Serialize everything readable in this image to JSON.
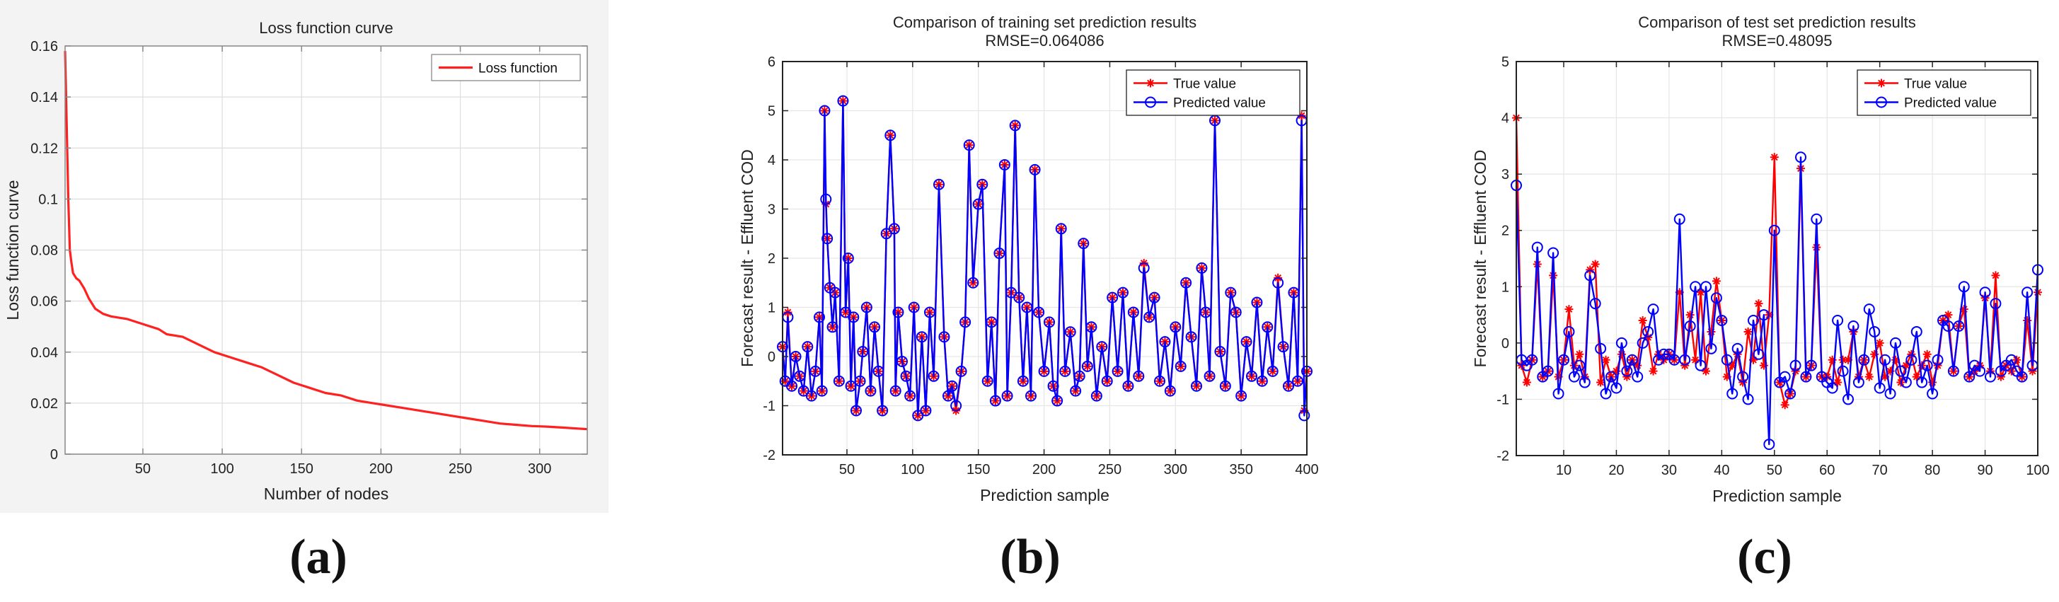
{
  "chart_data": [
    {
      "type": "line",
      "panel_label": "(a)",
      "title": "Loss function curve",
      "xlabel": "Number of nodes",
      "ylabel": "Loss function curve",
      "xlim": [
        1,
        330
      ],
      "ylim": [
        0,
        0.16
      ],
      "xticks": [
        "50",
        "100",
        "150",
        "200",
        "250",
        "300"
      ],
      "yticks": [
        "0",
        "0.02",
        "0.04",
        "0.06",
        "0.08",
        "0.1",
        "0.12",
        "0.14",
        "0.16"
      ],
      "grid": true,
      "legend_position": "top-right",
      "series": [
        {
          "name": "Loss function",
          "color": "#ff2020",
          "x": [
            1,
            2,
            3,
            4,
            5,
            6,
            8,
            10,
            13,
            16,
            20,
            25,
            30,
            40,
            50,
            60,
            65,
            75,
            85,
            95,
            105,
            115,
            125,
            135,
            145,
            155,
            165,
            175,
            185,
            195,
            205,
            215,
            225,
            235,
            245,
            255,
            265,
            275,
            285,
            295,
            305,
            315,
            330
          ],
          "y": [
            0.158,
            0.13,
            0.1,
            0.08,
            0.075,
            0.071,
            0.069,
            0.068,
            0.065,
            0.061,
            0.057,
            0.055,
            0.054,
            0.053,
            0.051,
            0.049,
            0.047,
            0.046,
            0.043,
            0.04,
            0.038,
            0.036,
            0.034,
            0.031,
            0.028,
            0.026,
            0.024,
            0.023,
            0.021,
            0.02,
            0.019,
            0.018,
            0.017,
            0.016,
            0.015,
            0.014,
            0.013,
            0.012,
            0.0115,
            0.011,
            0.0108,
            0.0104,
            0.0098
          ]
        }
      ]
    },
    {
      "type": "line",
      "panel_label": "(b)",
      "title": "Comparison of training set prediction results",
      "subtitle": "RMSE=0.064086",
      "xlabel": "Prediction sample",
      "ylabel": "Forecast result - Effluent COD",
      "xlim": [
        1,
        400
      ],
      "ylim": [
        -2,
        6
      ],
      "xticks": [
        "50",
        "100",
        "150",
        "200",
        "250",
        "300",
        "350",
        "400"
      ],
      "yticks": [
        "-2",
        "-1",
        "0",
        "1",
        "2",
        "3",
        "4",
        "5",
        "6"
      ],
      "grid": true,
      "legend_position": "top-right",
      "series": [
        {
          "name": "True value",
          "color": "#ff0000",
          "marker": "star",
          "x": [
            1,
            3,
            5,
            8,
            11,
            14,
            17,
            20,
            23,
            26,
            29,
            31,
            33,
            34,
            35,
            37,
            39,
            41,
            44,
            47,
            49,
            51,
            53,
            55,
            57,
            60,
            62,
            65,
            68,
            71,
            74,
            77,
            80,
            83,
            86,
            87,
            89,
            92,
            95,
            98,
            101,
            104,
            107,
            110,
            113,
            116,
            120,
            124,
            127,
            130,
            133,
            137,
            140,
            143,
            146,
            150,
            153,
            157,
            160,
            163,
            166,
            170,
            172,
            175,
            178,
            181,
            184,
            187,
            190,
            193,
            196,
            200,
            204,
            207,
            210,
            213,
            216,
            220,
            224,
            227,
            230,
            233,
            236,
            240,
            244,
            248,
            252,
            256,
            260,
            264,
            268,
            272,
            276,
            280,
            284,
            288,
            292,
            296,
            300,
            304,
            308,
            312,
            316,
            320,
            323,
            326,
            330,
            334,
            338,
            342,
            346,
            350,
            354,
            358,
            362,
            366,
            370,
            374,
            378,
            382,
            386,
            390,
            393,
            396,
            398,
            400
          ],
          "y": [
            0.2,
            -0.5,
            0.9,
            -0.6,
            0,
            -0.4,
            -0.7,
            0.2,
            -0.8,
            -0.3,
            0.8,
            -0.7,
            5.0,
            3.1,
            2.4,
            1.4,
            0.6,
            1.3,
            -0.5,
            5.2,
            0.9,
            2.0,
            -0.6,
            0.8,
            -1.1,
            -0.5,
            0.1,
            1.0,
            -0.7,
            0.6,
            -0.3,
            -1.1,
            2.5,
            4.5,
            2.6,
            -0.7,
            0.9,
            -0.1,
            -0.4,
            -0.8,
            1.0,
            -1.2,
            0.4,
            -1.1,
            0.9,
            -0.4,
            3.5,
            0.4,
            -0.8,
            -0.6,
            -1.1,
            -0.3,
            0.7,
            4.3,
            1.5,
            3.1,
            3.5,
            -0.5,
            0.7,
            -0.9,
            2.1,
            3.9,
            -0.8,
            1.3,
            4.7,
            1.2,
            -0.5,
            1.0,
            -0.8,
            3.8,
            0.9,
            -0.3,
            0.7,
            -0.6,
            -0.9,
            2.6,
            -0.3,
            0.5,
            -0.7,
            -0.4,
            2.3,
            -0.2,
            0.6,
            -0.8,
            0.2,
            -0.5,
            1.2,
            -0.3,
            1.3,
            -0.6,
            0.9,
            -0.4,
            1.9,
            0.8,
            1.2,
            -0.5,
            0.3,
            -0.7,
            0.6,
            -0.2,
            1.5,
            0.4,
            -0.6,
            1.8,
            0.9,
            -0.4,
            4.8,
            0.1,
            -0.6,
            1.3,
            0.9,
            -0.8,
            0.3,
            -0.4,
            1.1,
            -0.5,
            0.6,
            -0.3,
            1.6,
            0.2,
            -0.6,
            1.3,
            -0.5,
            4.9,
            -1.1,
            -0.3
          ],
          "smoothing": "none"
        },
        {
          "name": "Predicted value",
          "color": "#0000ff",
          "marker": "circle",
          "x": [
            1,
            3,
            5,
            8,
            11,
            14,
            17,
            20,
            23,
            26,
            29,
            31,
            33,
            34,
            35,
            37,
            39,
            41,
            44,
            47,
            49,
            51,
            53,
            55,
            57,
            60,
            62,
            65,
            68,
            71,
            74,
            77,
            80,
            83,
            86,
            87,
            89,
            92,
            95,
            98,
            101,
            104,
            107,
            110,
            113,
            116,
            120,
            124,
            127,
            130,
            133,
            137,
            140,
            143,
            146,
            150,
            153,
            157,
            160,
            163,
            166,
            170,
            172,
            175,
            178,
            181,
            184,
            187,
            190,
            193,
            196,
            200,
            204,
            207,
            210,
            213,
            216,
            220,
            224,
            227,
            230,
            233,
            236,
            240,
            244,
            248,
            252,
            256,
            260,
            264,
            268,
            272,
            276,
            280,
            284,
            288,
            292,
            296,
            300,
            304,
            308,
            312,
            316,
            320,
            323,
            326,
            330,
            334,
            338,
            342,
            346,
            350,
            354,
            358,
            362,
            366,
            370,
            374,
            378,
            382,
            386,
            390,
            393,
            396,
            398,
            400
          ],
          "y": [
            0.2,
            -0.5,
            0.8,
            -0.6,
            0,
            -0.4,
            -0.7,
            0.2,
            -0.8,
            -0.3,
            0.8,
            -0.7,
            5.0,
            3.2,
            2.4,
            1.4,
            0.6,
            1.3,
            -0.5,
            5.2,
            0.9,
            2.0,
            -0.6,
            0.8,
            -1.1,
            -0.5,
            0.1,
            1.0,
            -0.7,
            0.6,
            -0.3,
            -1.1,
            2.5,
            4.5,
            2.6,
            -0.7,
            0.9,
            -0.1,
            -0.4,
            -0.8,
            1.0,
            -1.2,
            0.4,
            -1.1,
            0.9,
            -0.4,
            3.5,
            0.4,
            -0.8,
            -0.6,
            -1.0,
            -0.3,
            0.7,
            4.3,
            1.5,
            3.1,
            3.5,
            -0.5,
            0.7,
            -0.9,
            2.1,
            3.9,
            -0.8,
            1.3,
            4.7,
            1.2,
            -0.5,
            1.0,
            -0.8,
            3.8,
            0.9,
            -0.3,
            0.7,
            -0.6,
            -0.9,
            2.6,
            -0.3,
            0.5,
            -0.7,
            -0.4,
            2.3,
            -0.2,
            0.6,
            -0.8,
            0.2,
            -0.5,
            1.2,
            -0.3,
            1.3,
            -0.6,
            0.9,
            -0.4,
            1.8,
            0.8,
            1.2,
            -0.5,
            0.3,
            -0.7,
            0.6,
            -0.2,
            1.5,
            0.4,
            -0.6,
            1.8,
            0.9,
            -0.4,
            4.8,
            0.1,
            -0.6,
            1.3,
            0.9,
            -0.8,
            0.3,
            -0.4,
            1.1,
            -0.5,
            0.6,
            -0.3,
            1.5,
            0.2,
            -0.6,
            1.3,
            -0.5,
            4.8,
            -1.2,
            -0.3
          ]
        }
      ]
    },
    {
      "type": "line",
      "panel_label": "(c)",
      "title": "Comparison of test set prediction results",
      "subtitle": "RMSE=0.48095",
      "xlabel": "Prediction sample",
      "ylabel": "Forecast result - Effluent COD",
      "xlim": [
        1,
        100
      ],
      "ylim": [
        -2,
        5
      ],
      "xticks": [
        "10",
        "20",
        "30",
        "40",
        "50",
        "60",
        "70",
        "80",
        "90",
        "100"
      ],
      "yticks": [
        "-2",
        "-1",
        "0",
        "1",
        "2",
        "3",
        "4",
        "5"
      ],
      "grid": true,
      "legend_position": "top-right",
      "series": [
        {
          "name": "True value",
          "color": "#ff0000",
          "marker": "star",
          "x": [
            1,
            2,
            3,
            4,
            5,
            6,
            7,
            8,
            9,
            10,
            11,
            12,
            13,
            14,
            15,
            16,
            17,
            18,
            19,
            20,
            21,
            22,
            23,
            24,
            25,
            26,
            27,
            28,
            29,
            30,
            31,
            32,
            33,
            34,
            35,
            36,
            37,
            38,
            39,
            40,
            41,
            42,
            43,
            44,
            45,
            46,
            47,
            48,
            49,
            50,
            51,
            52,
            53,
            54,
            55,
            56,
            57,
            58,
            59,
            60,
            61,
            62,
            63,
            64,
            65,
            66,
            67,
            68,
            69,
            70,
            71,
            72,
            73,
            74,
            75,
            76,
            77,
            78,
            79,
            80,
            81,
            82,
            83,
            84,
            85,
            86,
            87,
            88,
            89,
            90,
            91,
            92,
            93,
            94,
            95,
            96,
            97,
            98,
            99,
            100
          ],
          "y": [
            4.0,
            -0.4,
            -0.7,
            -0.3,
            1.4,
            -0.6,
            -0.5,
            1.2,
            -0.6,
            -0.3,
            0.6,
            -0.4,
            -0.2,
            -0.6,
            1.3,
            1.4,
            -0.7,
            -0.3,
            -0.6,
            -0.5,
            -0.2,
            -0.6,
            -0.3,
            -0.4,
            0.4,
            0.1,
            -0.5,
            -0.2,
            -0.3,
            -0.2,
            -0.3,
            0.9,
            -0.4,
            0.5,
            -0.3,
            0.9,
            -0.5,
            0.2,
            1.1,
            0.4,
            -0.6,
            -0.4,
            -0.2,
            -0.7,
            0.2,
            -0.3,
            0.7,
            -0.4,
            0.5,
            3.3,
            -0.7,
            -1.1,
            -0.9,
            -0.5,
            3.1,
            -0.6,
            -0.4,
            1.7,
            -0.6,
            -0.6,
            -0.3,
            -0.7,
            -0.3,
            -0.3,
            0.2,
            -0.6,
            -0.3,
            -0.6,
            -0.2,
            0.0,
            -0.6,
            -0.5,
            -0.3,
            -0.7,
            -0.4,
            -0.2,
            -0.6,
            -0.4,
            -0.2,
            -0.7,
            -0.4,
            0.4,
            0.5,
            -0.5,
            0.3,
            0.6,
            -0.6,
            -0.5,
            -0.4,
            0.8,
            -0.5,
            1.2,
            -0.6,
            -0.4,
            -0.5,
            -0.3,
            -0.6,
            0.4,
            -0.5,
            0.9
          ]
        },
        {
          "name": "Predicted value",
          "color": "#0000ff",
          "marker": "circle",
          "x": [
            1,
            2,
            3,
            4,
            5,
            6,
            7,
            8,
            9,
            10,
            11,
            12,
            13,
            14,
            15,
            16,
            17,
            18,
            19,
            20,
            21,
            22,
            23,
            24,
            25,
            26,
            27,
            28,
            29,
            30,
            31,
            32,
            33,
            34,
            35,
            36,
            37,
            38,
            39,
            40,
            41,
            42,
            43,
            44,
            45,
            46,
            47,
            48,
            49,
            50,
            51,
            52,
            53,
            54,
            55,
            56,
            57,
            58,
            59,
            60,
            61,
            62,
            63,
            64,
            65,
            66,
            67,
            68,
            69,
            70,
            71,
            72,
            73,
            74,
            75,
            76,
            77,
            78,
            79,
            80,
            81,
            82,
            83,
            84,
            85,
            86,
            87,
            88,
            89,
            90,
            91,
            92,
            93,
            94,
            95,
            96,
            97,
            98,
            99,
            100
          ],
          "y": [
            2.8,
            -0.3,
            -0.4,
            -0.3,
            1.7,
            -0.6,
            -0.5,
            1.6,
            -0.9,
            -0.3,
            0.2,
            -0.6,
            -0.4,
            -0.7,
            1.2,
            0.7,
            -0.1,
            -0.9,
            -0.6,
            -0.8,
            0.0,
            -0.5,
            -0.3,
            -0.6,
            0.0,
            0.2,
            0.6,
            -0.3,
            -0.2,
            -0.2,
            -0.3,
            2.2,
            -0.3,
            0.3,
            1.0,
            -0.4,
            1.0,
            -0.1,
            0.8,
            0.4,
            -0.3,
            -0.9,
            -0.1,
            -0.6,
            -1.0,
            0.4,
            -0.2,
            0.5,
            -1.8,
            2.0,
            -0.7,
            -0.6,
            -0.9,
            -0.4,
            3.3,
            -0.6,
            -0.4,
            2.2,
            -0.6,
            -0.7,
            -0.8,
            0.4,
            -0.5,
            -1.0,
            0.3,
            -0.7,
            -0.3,
            0.6,
            0.2,
            -0.8,
            -0.3,
            -0.9,
            0.0,
            -0.5,
            -0.7,
            -0.3,
            0.2,
            -0.7,
            -0.4,
            -0.9,
            -0.3,
            0.4,
            0.3,
            -0.5,
            0.3,
            1.0,
            -0.6,
            -0.4,
            -0.5,
            0.9,
            -0.6,
            0.7,
            -0.5,
            -0.4,
            -0.3,
            -0.5,
            -0.6,
            0.9,
            -0.4,
            1.3
          ]
        }
      ]
    }
  ]
}
